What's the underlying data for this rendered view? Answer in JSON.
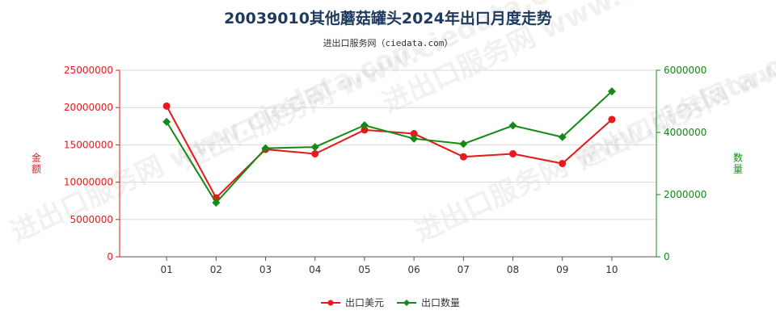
{
  "title": "20039010其他蘑菇罐头2024年出口月度走势",
  "subtitle": "进出口服务网（ciedata.com）",
  "watermark": "进出口服务网 www.ciedata.com",
  "chart_data": {
    "type": "line",
    "categories": [
      "01",
      "02",
      "03",
      "04",
      "05",
      "06",
      "07",
      "08",
      "09",
      "10"
    ],
    "series": [
      {
        "name": "出口美元",
        "axis": "left",
        "color": "#e8191a",
        "values": [
          20200000,
          7900000,
          14400000,
          13800000,
          17000000,
          16500000,
          13400000,
          13800000,
          12500000,
          18400000
        ]
      },
      {
        "name": "出口数量",
        "axis": "right",
        "color": "#138a13",
        "values": [
          4340000,
          1740000,
          3490000,
          3530000,
          4230000,
          3800000,
          3630000,
          4220000,
          3850000,
          5320000
        ]
      }
    ],
    "ylabel_left": "金额",
    "ylabel_right": "数量",
    "ylim_left": [
      0,
      25000000
    ],
    "ylim_right": [
      0,
      6000000
    ],
    "yticks_left": [
      "0",
      "5000000",
      "10000000",
      "15000000",
      "20000000",
      "25000000"
    ],
    "yticks_right": [
      "0",
      "2000000",
      "4000000",
      "6000000"
    ],
    "grid": "horizontal",
    "legend": "bottom-center"
  }
}
